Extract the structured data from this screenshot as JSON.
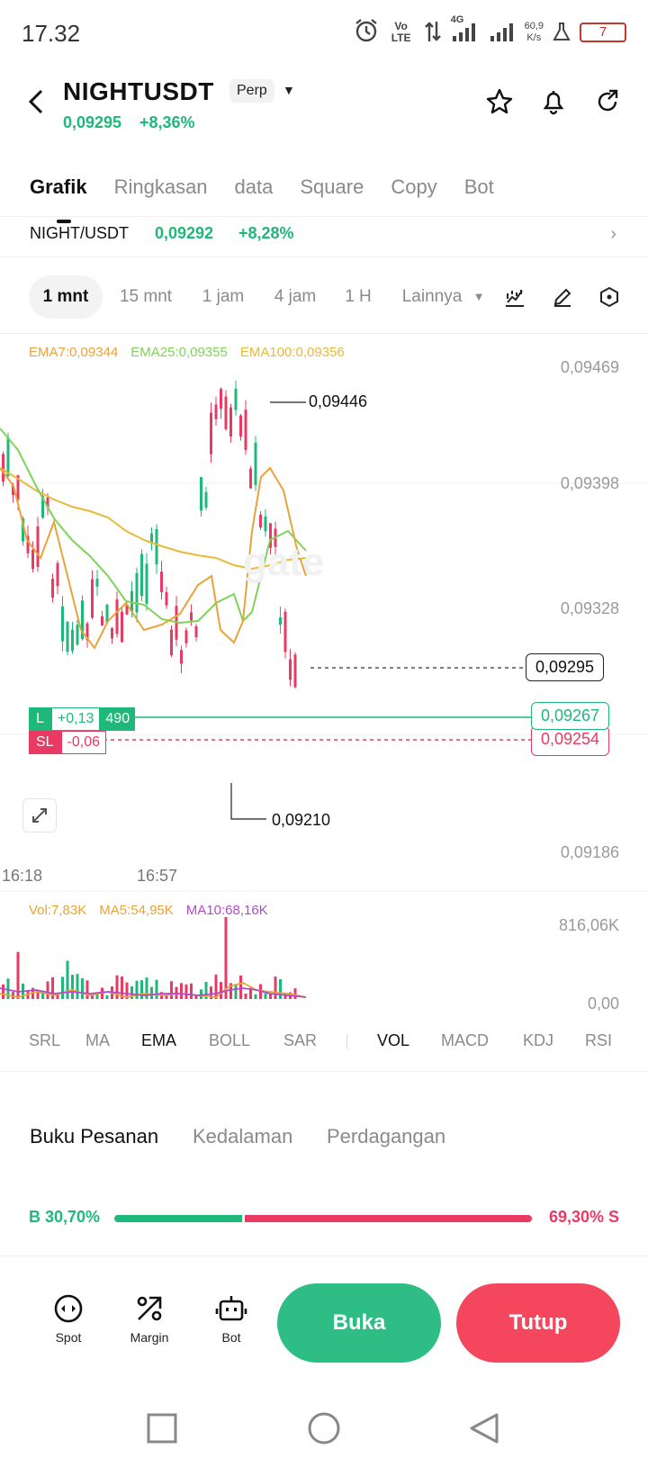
{
  "status_bar": {
    "time": "17.32",
    "network_type": "4G",
    "speed_value": "60,9",
    "speed_unit": "K/s",
    "volte": "Vo LTE",
    "battery": "7"
  },
  "header": {
    "symbol": "NIGHTUSDT",
    "contract_type": "Perp",
    "last_price": "0,09295",
    "change_pct": "+8,36%"
  },
  "tabs": [
    "Grafik",
    "Ringkasan",
    "data",
    "Square",
    "Copy",
    "Bot"
  ],
  "pair_row": {
    "name": "NIGHT/USDT",
    "price": "0,09292",
    "change": "+8,28%"
  },
  "intervals": [
    "1 mnt",
    "15 mnt",
    "1 jam",
    "4 jam",
    "1 H",
    "Lainnya"
  ],
  "ema_legend": {
    "ema7": "EMA7:0,09344",
    "ema25": "EMA25:0,09355",
    "ema100": "EMA100:0,09356"
  },
  "price_axis": [
    "0,09469",
    "0,09398",
    "0,09328",
    "0,09186"
  ],
  "price_markers": {
    "high": "0,09446",
    "low": "0,09210",
    "current": "0,09295",
    "entry": "0,09267",
    "stop_loss": "0,09254"
  },
  "position": {
    "side": "L",
    "pnl": "+0,13",
    "qty": "490",
    "sl_label": "SL",
    "sl_pnl": "-0,06"
  },
  "time_axis": [
    "16:18",
    "16:57"
  ],
  "volume_legend": {
    "vol": "Vol:7,83K",
    "ma5": "MA5:54,95K",
    "ma10": "MA10:68,16K"
  },
  "volume_axis": [
    "816,06K",
    "0,00"
  ],
  "indicators_main": [
    "SRL",
    "MA",
    "EMA",
    "BOLL",
    "SAR"
  ],
  "indicators_sub": [
    "VOL",
    "MACD",
    "KDJ",
    "RSI"
  ],
  "book_tabs": [
    "Buku Pesanan",
    "Kedalaman",
    "Perdagangan"
  ],
  "ratio": {
    "buy_label": "B 30,70%",
    "sell_label": "69,30% S",
    "buy_fraction": 0.307
  },
  "bottom_nav": {
    "spot": "Spot",
    "margin": "Margin",
    "bot": "Bot",
    "open_button": "Buka",
    "close_button": "Tutup"
  },
  "colors": {
    "up": "#1fb87b",
    "down": "#e93a64",
    "ema7": "#e8a33a",
    "ema25": "#7fd35a",
    "ema100": "#e8b93a",
    "ma10": "#b04ad0"
  }
}
